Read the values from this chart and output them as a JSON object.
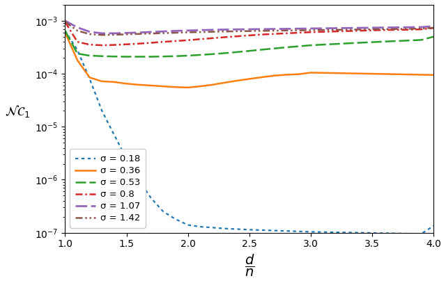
{
  "x": [
    1.0,
    1.1,
    1.2,
    1.3,
    1.4,
    1.5,
    1.6,
    1.7,
    1.8,
    1.9,
    2.0,
    2.1,
    2.2,
    2.3,
    2.4,
    2.5,
    2.6,
    2.7,
    2.8,
    2.9,
    3.0,
    3.1,
    3.2,
    3.3,
    3.4,
    3.5,
    3.6,
    3.7,
    3.8,
    3.9,
    4.0
  ],
  "sigma_018": [
    0.00065,
    0.00028,
    8e-05,
    2e-05,
    7e-06,
    2.5e-06,
    1e-06,
    4.5e-07,
    2.5e-07,
    1.8e-07,
    1.4e-07,
    1.3e-07,
    1.25e-07,
    1.2e-07,
    1.17e-07,
    1.14e-07,
    1.12e-07,
    1.1e-07,
    1.08e-07,
    1.06e-07,
    1.04e-07,
    1.03e-07,
    1.02e-07,
    1.01e-07,
    1e-07,
    9.9e-08,
    9.8e-08,
    9.7e-08,
    9.6e-08,
    9.5e-08,
    1.35e-07
  ],
  "sigma_036": [
    0.0006,
    0.00018,
    8.5e-05,
    7.2e-05,
    7e-05,
    6.5e-05,
    6.2e-05,
    6e-05,
    5.8e-05,
    5.6e-05,
    5.5e-05,
    5.8e-05,
    6.2e-05,
    6.8e-05,
    7.4e-05,
    8e-05,
    8.6e-05,
    9.2e-05,
    9.6e-05,
    9.8e-05,
    0.000105,
    0.000104,
    0.000103,
    0.000102,
    0.000101,
    0.0001,
    9.9e-05,
    9.8e-05,
    9.7e-05,
    9.6e-05,
    9.5e-05
  ],
  "sigma_053": [
    0.00065,
    0.00024,
    0.00022,
    0.000215,
    0.000212,
    0.00021,
    0.00021,
    0.00021,
    0.000212,
    0.000215,
    0.00022,
    0.000227,
    0.000235,
    0.000245,
    0.000257,
    0.00027,
    0.000285,
    0.0003,
    0.000315,
    0.00033,
    0.000345,
    0.000355,
    0.000365,
    0.000375,
    0.000385,
    0.000395,
    0.000405,
    0.000415,
    0.000425,
    0.000435,
    0.0005
  ],
  "sigma_08": [
    0.00095,
    0.0004,
    0.000355,
    0.000345,
    0.00035,
    0.00036,
    0.00037,
    0.000385,
    0.0004,
    0.000415,
    0.00043,
    0.00045,
    0.00047,
    0.00049,
    0.00051,
    0.00053,
    0.00055,
    0.000565,
    0.00058,
    0.000595,
    0.00061,
    0.00062,
    0.00063,
    0.00064,
    0.00065,
    0.00066,
    0.00067,
    0.000675,
    0.00068,
    0.00069,
    0.00073
  ],
  "sigma_107": [
    0.001,
    0.00075,
    0.00062,
    0.00058,
    0.00058,
    0.00059,
    0.0006,
    0.000615,
    0.00063,
    0.000645,
    0.000655,
    0.000665,
    0.000675,
    0.000682,
    0.000688,
    0.000692,
    0.000696,
    0.0007,
    0.000705,
    0.00071,
    0.000715,
    0.00072,
    0.000725,
    0.00073,
    0.000735,
    0.00074,
    0.000745,
    0.00075,
    0.000755,
    0.00076,
    0.00079
  ],
  "sigma_142": [
    0.00096,
    0.00065,
    0.00056,
    0.00054,
    0.000545,
    0.000555,
    0.000565,
    0.000575,
    0.000585,
    0.000595,
    0.000605,
    0.000612,
    0.00062,
    0.000628,
    0.000634,
    0.00064,
    0.000645,
    0.00065,
    0.000655,
    0.00066,
    0.000665,
    0.00067,
    0.000675,
    0.00068,
    0.000685,
    0.00069,
    0.000695,
    0.0007,
    0.000705,
    0.00071,
    0.00074
  ],
  "colors": [
    "#1f77b4",
    "#ff7f0e",
    "#2ca02c",
    "#d62728",
    "#9467bd",
    "#8c564b"
  ],
  "labels": [
    "σ = 0.18",
    "σ = 0.36",
    "σ = 0.53",
    "σ = 0.8",
    "σ = 1.07",
    "σ = 1.42"
  ],
  "xlabel": "$\\dfrac{d}{n}$",
  "ylabel": "$\\mathcal{NC}_1$",
  "xlim": [
    1.0,
    4.0
  ],
  "ylim": [
    1e-07,
    0.002
  ]
}
